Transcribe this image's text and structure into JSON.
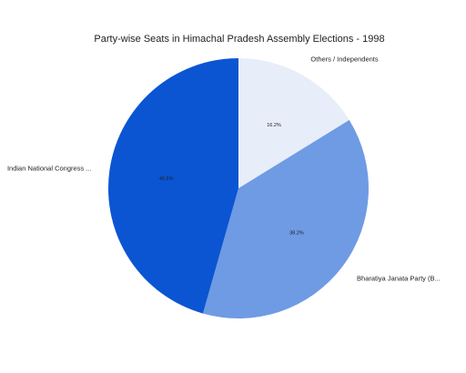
{
  "chart_data": {
    "type": "pie",
    "title": "Party-wise Seats in Himachal Pradesh Assembly Elections - 1998",
    "slices": [
      {
        "label": "Others / Independents",
        "value": 16.2,
        "pct_label": "16.2%",
        "color": "#e8edfa"
      },
      {
        "label": "Bharatiya Janata Party (B...",
        "value": 38.2,
        "pct_label": "38.2%",
        "color": "#6e9be3"
      },
      {
        "label": "Indian National Congress ...",
        "value": 45.6,
        "pct_label": "45.6%",
        "color": "#0b55d3"
      }
    ],
    "start_angle_deg": 0,
    "direction": "clockwise",
    "legend": "none"
  }
}
